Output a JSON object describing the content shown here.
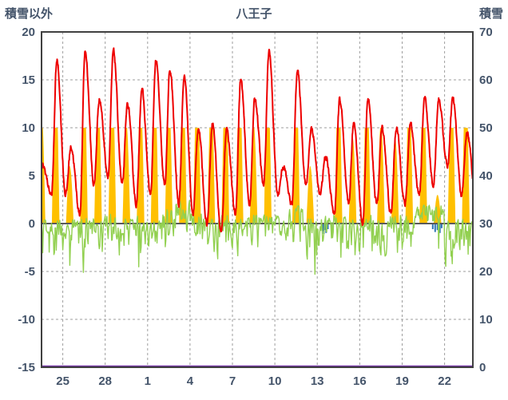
{
  "title": "八王子",
  "chart_data": {
    "type": "line",
    "title": "八王子",
    "left_axis": {
      "label": "積雪以外",
      "min": -15,
      "max": 20,
      "ticks": [
        20,
        15,
        10,
        5,
        0,
        -5,
        -10,
        -15
      ]
    },
    "right_axis": {
      "label": "積雪",
      "min": 0,
      "max": 70,
      "ticks": [
        70,
        60,
        50,
        40,
        30,
        20,
        10,
        0
      ]
    },
    "x_ticks": [
      "25",
      "28",
      "1",
      "4",
      "7",
      "10",
      "13",
      "16",
      "19",
      "22"
    ],
    "x_tick_day_indices": [
      2,
      5,
      8,
      11,
      14,
      17,
      20,
      23,
      26,
      29
    ],
    "grid": "dashed",
    "legend": "none",
    "series": [
      {
        "name": "red-line-temperature",
        "type": "line",
        "color": "#ee0000",
        "axis": "left"
      },
      {
        "name": "orange-bars-sunshine",
        "type": "area",
        "color": "#ffc000",
        "axis": "left",
        "cap": 10
      },
      {
        "name": "green-line",
        "type": "line",
        "color": "#92d050",
        "axis": "left"
      },
      {
        "name": "blue-marks-precipitation",
        "type": "bar",
        "color": "#2e75b6",
        "axis": "left"
      },
      {
        "name": "purple-line-snow-depth",
        "type": "line",
        "color": "#7030a0",
        "axis": "right",
        "constant_value": 0
      }
    ],
    "days": [
      {
        "label": "23",
        "tmin": 2,
        "tmax": 6,
        "sun": 8,
        "gmin": -4,
        "gmax": 0.5
      },
      {
        "label": "24",
        "tmin": 3,
        "tmax": 17,
        "sun": 10,
        "gmin": -3.5,
        "gmax": 0.5
      },
      {
        "label": "25",
        "tmin": 3,
        "tmax": 8,
        "sun": 4,
        "gmin": -7,
        "gmax": 0.5
      },
      {
        "label": "26",
        "tmin": 1,
        "tmax": 18,
        "sun": 10,
        "gmin": -6,
        "gmax": 1
      },
      {
        "label": "27",
        "tmin": 4,
        "tmax": 13,
        "sun": 9,
        "gmin": -4,
        "gmax": 0.5
      },
      {
        "label": "28",
        "tmin": 5,
        "tmax": 18,
        "sun": 10,
        "gmin": -3.5,
        "gmax": 1
      },
      {
        "label": "29",
        "tmin": 4,
        "tmax": 12.5,
        "sun": 7,
        "gmin": -4,
        "gmax": 0.5
      },
      {
        "label": "30",
        "tmin": 2,
        "tmax": 14,
        "sun": 9,
        "gmin": -5,
        "gmax": 1
      },
      {
        "label": "1",
        "tmin": 3,
        "tmax": 17,
        "sun": 10,
        "gmin": -3.5,
        "gmax": 0.5
      },
      {
        "label": "2",
        "tmin": 4,
        "tmax": 16,
        "sun": 9,
        "gmin": -4,
        "gmax": 1.5
      },
      {
        "label": "3",
        "tmin": 2,
        "tmax": 15.5,
        "sun": 10,
        "gmin": -3,
        "gmax": 2.5
      },
      {
        "label": "4",
        "tmin": 1,
        "tmax": 10,
        "sun": 10,
        "gmin": -4.5,
        "gmax": 1
      },
      {
        "label": "5",
        "tmin": 0,
        "tmax": 10.5,
        "sun": 9,
        "gmin": -4,
        "gmax": 0.5
      },
      {
        "label": "6",
        "tmin": -1,
        "tmax": 10,
        "sun": 10,
        "gmin": -3.5,
        "gmax": 1
      },
      {
        "label": "7",
        "tmin": 1,
        "tmax": 15,
        "sun": 10,
        "gmin": -4,
        "gmax": 0.5
      },
      {
        "label": "8",
        "tmin": 2,
        "tmax": 13,
        "sun": 7,
        "gmin": -3,
        "gmax": 1
      },
      {
        "label": "9",
        "tmin": 4,
        "tmax": 18,
        "sun": 10,
        "gmin": -3.5,
        "gmax": 1
      },
      {
        "label": "10",
        "tmin": 3,
        "tmax": 6,
        "sun": 0,
        "gmin": -2.5,
        "gmax": 1
      },
      {
        "label": "11",
        "tmin": 2,
        "tmax": 16,
        "sun": 10,
        "gmin": -4,
        "gmax": 2
      },
      {
        "label": "12",
        "tmin": 4,
        "tmax": 10,
        "sun": 4,
        "gmin": -10.5,
        "gmax": 0.5
      },
      {
        "label": "13",
        "tmin": 3,
        "tmax": 7,
        "sun": 0,
        "gmin": -3,
        "gmax": 1
      },
      {
        "label": "14",
        "tmin": 1,
        "tmax": 13,
        "sun": 10,
        "gmin": -4.5,
        "gmax": 1
      },
      {
        "label": "15",
        "tmin": 2,
        "tmax": 10.5,
        "sun": 6,
        "gmin": -4,
        "gmax": 0.5
      },
      {
        "label": "16",
        "tmin": 0,
        "tmax": 13,
        "sun": 10,
        "gmin": -3.5,
        "gmax": 1
      },
      {
        "label": "17",
        "tmin": 2,
        "tmax": 10,
        "sun": 7,
        "gmin": -4,
        "gmax": 0.5
      },
      {
        "label": "18",
        "tmin": 1,
        "tmax": 10,
        "sun": 6,
        "gmin": -3.5,
        "gmax": 1
      },
      {
        "label": "19",
        "tmin": 2,
        "tmax": 10.5,
        "sun": 9,
        "gmin": -4,
        "gmax": 1
      },
      {
        "label": "20",
        "tmin": 3,
        "tmax": 13,
        "sun": 10,
        "gmin": -3,
        "gmax": 2
      },
      {
        "label": "21",
        "tmin": 4,
        "tmax": 13,
        "sun": 2,
        "gmin": -3.5,
        "gmax": 2
      },
      {
        "label": "22",
        "tmin": 6,
        "tmax": 13,
        "sun": 9,
        "gmin": -8,
        "gmax": 0.5
      },
      {
        "label": "23",
        "tmin": 3,
        "tmax": 9.5,
        "sun": 10,
        "gmin": -5,
        "gmax": 0.5
      }
    ],
    "precip_marks": [
      [
        20,
        9,
        0.7
      ],
      [
        20,
        11,
        1.0
      ],
      [
        20,
        13,
        0.6
      ],
      [
        20,
        15,
        0.9
      ],
      [
        20,
        18,
        0.5
      ],
      [
        21,
        1,
        0.4
      ],
      [
        28,
        4,
        0.5
      ],
      [
        28,
        8,
        0.8
      ],
      [
        28,
        12,
        0.6
      ],
      [
        28,
        16,
        0.9
      ],
      [
        28,
        19,
        0.4
      ]
    ],
    "colors": {
      "red": "#ee0000",
      "green": "#92d050",
      "orange": "#ffc000",
      "blue": "#2e75b6",
      "purple": "#7030a0",
      "grid": "#9e9e9e",
      "zero_line": "#595959",
      "border": "#404040",
      "text": "#44546a",
      "background": "#ffffff"
    }
  }
}
